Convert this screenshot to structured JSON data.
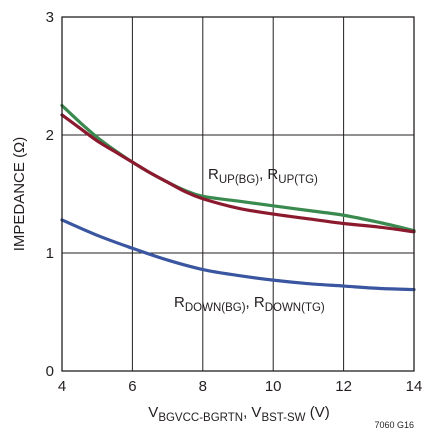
{
  "chart_data": {
    "type": "line",
    "xlabel": "V_BGVCC-BGRTN, V_BST-SW (V)",
    "xlabel_parts": {
      "main1": "V",
      "sub1": "BGVCC-BGRTN",
      "sep": ", V",
      "sub2": "BST-SW",
      "tail": " (V)"
    },
    "ylabel": "IMPEDANCE (Ω)",
    "xlim": [
      4,
      14
    ],
    "ylim": [
      0,
      3
    ],
    "xticks": [
      "4",
      "6",
      "8",
      "10",
      "12",
      "14"
    ],
    "yticks": [
      "0",
      "1",
      "2",
      "3"
    ],
    "grid": true,
    "figure_id": "7060 G16",
    "series": [
      {
        "name": "R_UP(BG)",
        "color": "#3a8a4f",
        "x": [
          4,
          4.5,
          5,
          5.5,
          6,
          6.5,
          7,
          7.5,
          8,
          9,
          10,
          11,
          12,
          13,
          14
        ],
        "y": [
          2.25,
          2.11,
          1.98,
          1.87,
          1.77,
          1.68,
          1.6,
          1.53,
          1.48,
          1.44,
          1.4,
          1.36,
          1.32,
          1.26,
          1.19
        ]
      },
      {
        "name": "R_UP(TG)",
        "color": "#8b1a2e",
        "x": [
          4,
          4.5,
          5,
          5.5,
          6,
          6.5,
          7,
          7.5,
          8,
          9,
          10,
          11,
          12,
          13,
          14
        ],
        "y": [
          2.17,
          2.06,
          1.95,
          1.86,
          1.77,
          1.68,
          1.6,
          1.52,
          1.46,
          1.38,
          1.33,
          1.29,
          1.25,
          1.22,
          1.18
        ]
      },
      {
        "name": "R_DOWN(BG)",
        "color": "#3b56a0",
        "x": [
          4,
          5,
          6,
          7,
          8,
          9,
          10,
          11,
          12,
          13,
          14
        ],
        "y": [
          1.28,
          1.15,
          1.04,
          0.94,
          0.86,
          0.81,
          0.77,
          0.74,
          0.72,
          0.7,
          0.69
        ]
      }
    ],
    "annotations": [
      {
        "text": "R_UP(BG), R_UP(TG)",
        "parts": {
          "main1": "R",
          "sub1": "UP(BG)",
          "sep": ", R",
          "sub2": "UP(TG)"
        }
      },
      {
        "text": "R_DOWN(BG), R_DOWN(TG)",
        "parts": {
          "main1": "R",
          "sub1": "DOWN(BG)",
          "sep": ", R",
          "sub2": "DOWN(TG)"
        }
      }
    ]
  }
}
